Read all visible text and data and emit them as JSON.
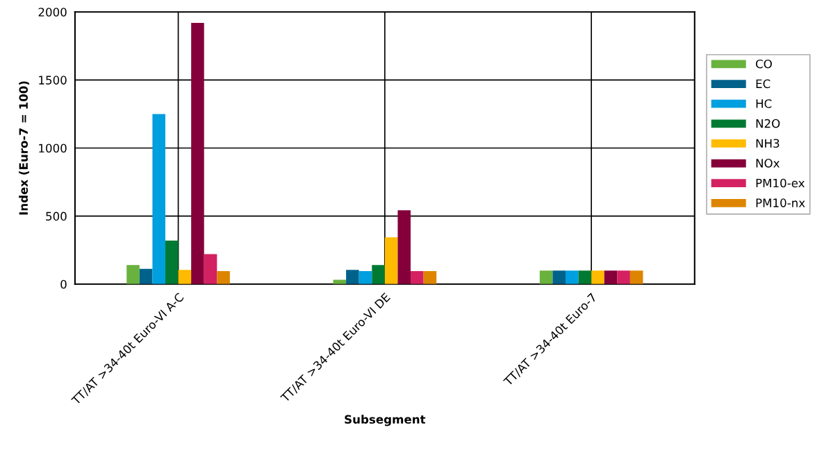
{
  "chart_data": {
    "type": "bar",
    "xlabel": "Subsegment",
    "ylabel": "Index (Euro-7 = 100)",
    "categories": [
      "TT/AT >34-40t Euro-VI A-C",
      "TT/AT >34-40t Euro-VI DE",
      "TT/AT >34-40t Euro-7"
    ],
    "series": [
      {
        "name": "CO",
        "color": "#6ab23e",
        "values": [
          140,
          32,
          100
        ]
      },
      {
        "name": "EC",
        "color": "#00628b",
        "values": [
          112,
          104,
          100
        ]
      },
      {
        "name": "HC",
        "color": "#009fdf",
        "values": [
          1250,
          96,
          100
        ]
      },
      {
        "name": "N2O",
        "color": "#007a33",
        "values": [
          320,
          140,
          100
        ]
      },
      {
        "name": "NH3",
        "color": "#ffbb00",
        "values": [
          104,
          344,
          100
        ]
      },
      {
        "name": "NOx",
        "color": "#85003b",
        "values": [
          1920,
          543,
          100
        ]
      },
      {
        "name": "PM10-ex",
        "color": "#d42161",
        "values": [
          221,
          96,
          100
        ]
      },
      {
        "name": "PM10-nx",
        "color": "#dd8500",
        "values": [
          96,
          96,
          100
        ]
      }
    ],
    "ylim": [
      0,
      2000
    ],
    "yticks": [
      0,
      500,
      1000,
      1500,
      2000
    ],
    "grid": true,
    "legend": "right"
  }
}
